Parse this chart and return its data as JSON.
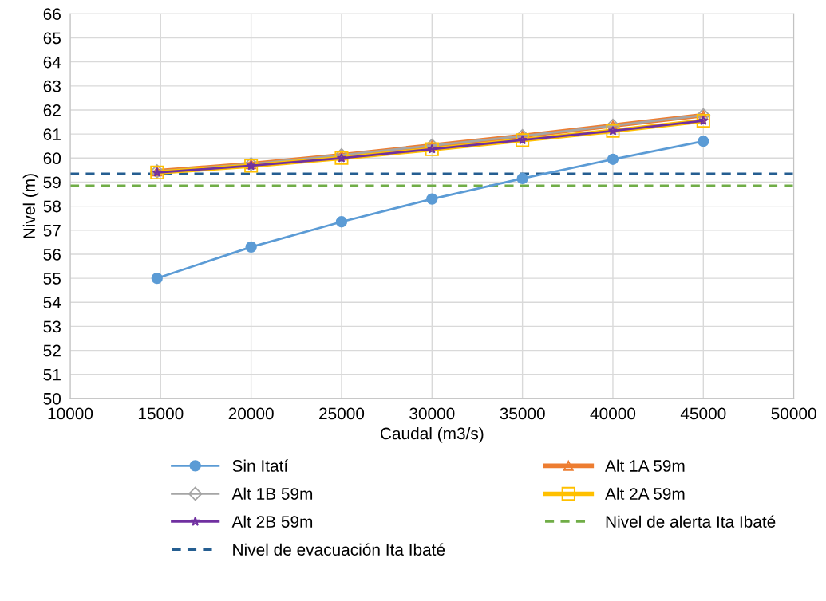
{
  "chart_data": {
    "type": "line",
    "xlabel": "Caudal (m3/s)",
    "ylabel": "Nivel (m)",
    "x": [
      14800,
      20000,
      25000,
      30000,
      35000,
      40000,
      45000
    ],
    "series": [
      {
        "name": "Sin Itatí",
        "color": "#5b9bd5",
        "marker": "circle",
        "values": [
          55.0,
          56.3,
          57.35,
          58.3,
          59.15,
          59.95,
          60.7
        ]
      },
      {
        "name": "Alt 1A 59m",
        "color": "#ed7d31",
        "marker": "triangle",
        "values": [
          59.45,
          59.75,
          60.12,
          60.52,
          60.92,
          61.35,
          61.78
        ]
      },
      {
        "name": "Alt 1B 59m",
        "color": "#a5a5a5",
        "marker": "diamond",
        "values": [
          59.45,
          59.75,
          60.12,
          60.52,
          60.92,
          61.35,
          61.78
        ]
      },
      {
        "name": "Alt 2A 59m",
        "color": "#ffc000",
        "marker": "square",
        "values": [
          59.4,
          59.68,
          60.0,
          60.37,
          60.75,
          61.13,
          61.55
        ]
      },
      {
        "name": "Alt 2B 59m",
        "color": "#7030a0",
        "marker": "star",
        "values": [
          59.4,
          59.68,
          60.0,
          60.37,
          60.75,
          61.13,
          61.55
        ]
      }
    ],
    "ref_lines": [
      {
        "axis": "y",
        "value": 58.85,
        "label": "Nivel de alerta Ita Ibaté",
        "color": "#70ad47",
        "line_style": "dashed"
      },
      {
        "axis": "y",
        "value": 59.35,
        "label": "Nivel de evacuación Ita Ibaté",
        "color": "#255e91",
        "line_style": "dashed"
      }
    ],
    "xlim": [
      10000,
      50000
    ],
    "xticks": [
      10000,
      15000,
      20000,
      25000,
      30000,
      35000,
      40000,
      45000,
      50000
    ],
    "ylim": [
      50,
      66
    ],
    "yticks": [
      50,
      51,
      52,
      53,
      54,
      55,
      56,
      57,
      58,
      59,
      60,
      61,
      62,
      63,
      64,
      65,
      66
    ],
    "grid": true,
    "legend": "bottom"
  }
}
